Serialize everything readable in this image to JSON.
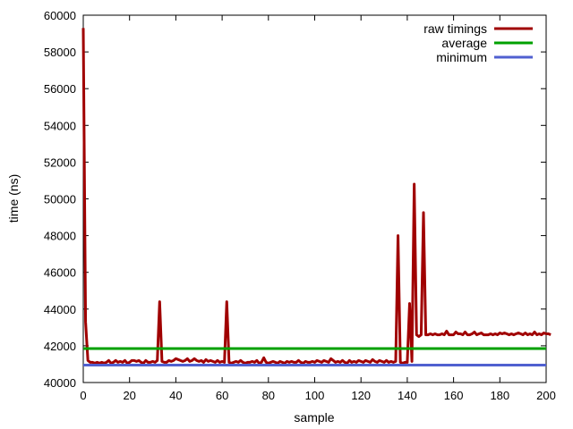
{
  "chart_data": {
    "type": "line",
    "xlabel": "sample",
    "ylabel": "time (ns)",
    "xlim": [
      0,
      200
    ],
    "ylim": [
      40000,
      60000
    ],
    "x_ticks": [
      "0",
      "20",
      "40",
      "60",
      "80",
      "100",
      "120",
      "140",
      "160",
      "180",
      "200"
    ],
    "y_ticks": [
      "40000",
      "42000",
      "44000",
      "46000",
      "48000",
      "50000",
      "52000",
      "54000",
      "56000",
      "58000",
      "60000"
    ],
    "grid": false,
    "legend_position": "top-right",
    "series": [
      {
        "name": "raw timings",
        "color": "#a00000",
        "kind": "line",
        "x_start": 0,
        "x_step": 1,
        "values": [
          59300,
          43300,
          41200,
          41100,
          41100,
          41050,
          41100,
          41050,
          41100,
          41050,
          41100,
          41200,
          41050,
          41100,
          41200,
          41100,
          41150,
          41100,
          41200,
          41050,
          41100,
          41200,
          41200,
          41150,
          41200,
          41100,
          41050,
          41200,
          41100,
          41100,
          41150,
          41100,
          41200,
          44400,
          41150,
          41100,
          41100,
          41200,
          41150,
          41200,
          41300,
          41250,
          41200,
          41150,
          41200,
          41300,
          41150,
          41200,
          41300,
          41200,
          41150,
          41200,
          41100,
          41250,
          41150,
          41200,
          41150,
          41100,
          41200,
          41100,
          41150,
          41100,
          44400,
          41100,
          41050,
          41100,
          41150,
          41100,
          41200,
          41100,
          41050,
          41100,
          41100,
          41150,
          41100,
          41200,
          41050,
          41100,
          41350,
          41100,
          41050,
          41100,
          41150,
          41100,
          41050,
          41150,
          41100,
          41050,
          41150,
          41100,
          41150,
          41100,
          41100,
          41200,
          41100,
          41050,
          41150,
          41100,
          41100,
          41150,
          41100,
          41200,
          41150,
          41100,
          41200,
          41150,
          41100,
          41300,
          41200,
          41100,
          41150,
          41100,
          41200,
          41100,
          41050,
          41200,
          41100,
          41150,
          41100,
          41200,
          41150,
          41100,
          41200,
          41150,
          41100,
          41250,
          41150,
          41100,
          41200,
          41150,
          41100,
          41200,
          41100,
          41150,
          41100,
          41150,
          48000,
          41100,
          41050,
          41100,
          41100,
          44300,
          41150,
          50800,
          42600,
          42500,
          42600,
          49250,
          42600,
          42600,
          42650,
          42600,
          42650,
          42600,
          42600,
          42650,
          42600,
          42800,
          42600,
          42600,
          42600,
          42750,
          42650,
          42650,
          42600,
          42750,
          42600,
          42600,
          42650,
          42750,
          42600,
          42650,
          42700,
          42600,
          42600,
          42600,
          42650,
          42600,
          42650,
          42600,
          42700,
          42650,
          42700,
          42650,
          42600,
          42650,
          42600,
          42650,
          42700,
          42650,
          42600,
          42700,
          42600,
          42650,
          42600,
          42750,
          42600,
          42650,
          42600,
          42700,
          42650,
          42650,
          42600
        ]
      },
      {
        "name": "average",
        "color": "#00a000",
        "kind": "constant",
        "value": 41850
      },
      {
        "name": "minimum",
        "color": "#5060d0",
        "kind": "constant",
        "value": 40950
      }
    ]
  }
}
